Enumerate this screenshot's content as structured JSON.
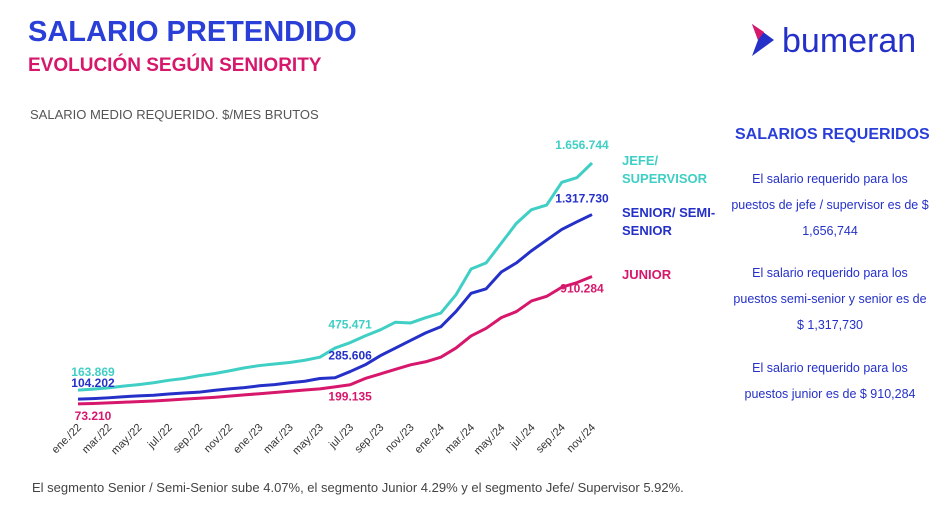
{
  "header": {
    "title": "SALARIO PRETENDIDO",
    "subtitle": "EVOLUCIÓN SEGÚN SENIORITY",
    "logo": "bumeran"
  },
  "chart_data": {
    "type": "line",
    "axis_label": "SALARIO MEDIO REQUERIDO. $/MES BRUTOS",
    "categories": [
      "ene./22",
      null,
      "mar./22",
      null,
      "may./22",
      null,
      "jul./22",
      null,
      "sep./22",
      null,
      "nov./22",
      null,
      "ene./23",
      null,
      "mar./23",
      null,
      "may./23",
      null,
      "jul./23",
      null,
      "sep./23",
      null,
      "nov./23",
      null,
      "ene./24",
      null,
      "mar./24",
      null,
      "may./24",
      null,
      "jul./24",
      null,
      "sep./24",
      null,
      "nov./24"
    ],
    "series": [
      {
        "name": "JEFE/ SUPERVISOR",
        "color": "#3fcfc4",
        "values": [
          163869,
          170000,
          178000,
          190000,
          200000,
          212000,
          228000,
          240000,
          258000,
          272000,
          290000,
          310000,
          325000,
          335000,
          345000,
          360000,
          380000,
          440000,
          475471,
          520000,
          560000,
          610000,
          605000,
          640000,
          670000,
          790000,
          960000,
          1000000,
          1130000,
          1260000,
          1350000,
          1380000,
          1530000,
          1560000,
          1656744
        ],
        "value_labels": [
          "163.869",
          null,
          null,
          null,
          null,
          null,
          null,
          null,
          null,
          null,
          null,
          null,
          null,
          null,
          null,
          null,
          null,
          null,
          "475.471",
          null,
          null,
          null,
          null,
          null,
          null,
          null,
          null,
          null,
          null,
          null,
          null,
          null,
          null,
          null,
          "1.656.744"
        ]
      },
      {
        "name": "SENIOR/ SEMI-SENIOR",
        "color": "#2430c8",
        "values": [
          104202,
          108000,
          113000,
          120000,
          126000,
          130000,
          138000,
          145000,
          150000,
          162000,
          172000,
          180000,
          192000,
          200000,
          212000,
          222000,
          240000,
          245000,
          285606,
          330000,
          390000,
          440000,
          490000,
          540000,
          580000,
          680000,
          800000,
          830000,
          940000,
          1000000,
          1080000,
          1150000,
          1220000,
          1270000,
          1317730
        ],
        "value_labels": [
          "104.202",
          null,
          null,
          null,
          null,
          null,
          null,
          null,
          null,
          null,
          null,
          null,
          null,
          null,
          null,
          null,
          null,
          null,
          "285.606",
          null,
          null,
          null,
          null,
          null,
          null,
          null,
          null,
          null,
          null,
          null,
          null,
          null,
          null,
          null,
          "1.317.730"
        ]
      },
      {
        "name": "JUNIOR",
        "color": "#d6176b",
        "values": [
          73210,
          76000,
          80000,
          84000,
          88000,
          92000,
          98000,
          104000,
          110000,
          116000,
          124000,
          132000,
          140000,
          148000,
          156000,
          164000,
          172000,
          185000,
          199135,
          240000,
          270000,
          300000,
          330000,
          350000,
          380000,
          440000,
          520000,
          570000,
          640000,
          680000,
          750000,
          780000,
          840000,
          870000,
          910284
        ],
        "value_labels": [
          "73.210",
          null,
          null,
          null,
          null,
          null,
          null,
          null,
          null,
          null,
          null,
          null,
          null,
          null,
          null,
          null,
          null,
          null,
          "199.135",
          null,
          null,
          null,
          null,
          null,
          null,
          null,
          null,
          null,
          null,
          null,
          null,
          null,
          null,
          null,
          "910.284"
        ]
      }
    ]
  },
  "side_panel": {
    "title": "SALARIOS REQUERIDOS",
    "items": [
      "El salario requerido para los puestos de jefe / supervisor es de $ 1,656,744",
      "El salario requerido para los puestos semi-senior y senior es de $ 1,317,730",
      "El salario requerido para los puestos junior es de $ 910,284"
    ]
  },
  "footnote": "El segmento Senior / Semi-Senior sube 4.07%, el segmento Junior  4.29% y el segmento Jefe/ Supervisor 5.92%."
}
